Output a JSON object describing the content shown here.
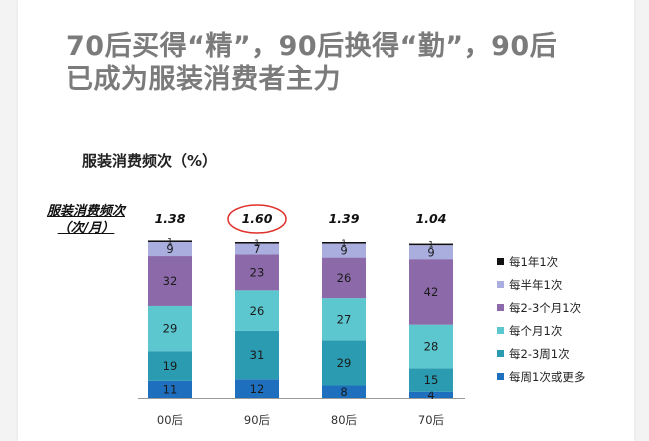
{
  "title_lines": [
    "70后买得“精”，90后换得“勤”，90后",
    "已成为服装消费者主力"
  ],
  "chart_data": {
    "type": "bar",
    "stacked": true,
    "title": "服装消费频次（%）",
    "freq_label": [
      "服装消费频次",
      "（次/月）"
    ],
    "categories": [
      "00后",
      "90后",
      "80后",
      "70后"
    ],
    "frequency": [
      "1.38",
      "1.60",
      "1.39",
      "1.04"
    ],
    "highlighted_category": "90后",
    "series": [
      {
        "name": "每周1次或更多",
        "color": "#1f6fbf",
        "values": [
          11,
          12,
          8,
          4
        ]
      },
      {
        "name": "每2-3周1次",
        "color": "#2a9bb0",
        "values": [
          19,
          31,
          29,
          15
        ]
      },
      {
        "name": "每个月1次",
        "color": "#5cc7cf",
        "values": [
          29,
          26,
          27,
          28
        ]
      },
      {
        "name": "每2-3个月1次",
        "color": "#8c6aa9",
        "values": [
          32,
          23,
          26,
          42
        ]
      },
      {
        "name": "每半年1次",
        "color": "#a9aede",
        "values": [
          9,
          7,
          9,
          9
        ]
      },
      {
        "name": "每1年1次",
        "color": "#111111",
        "values": [
          1,
          1,
          1,
          1
        ]
      }
    ],
    "legend_order": [
      "每1年1次",
      "每半年1次",
      "每2-3个月1次",
      "每个月1次",
      "每2-3周1次",
      "每周1次或更多"
    ],
    "ylim": [
      0,
      100
    ],
    "legend_position": "right",
    "highlight_color": "#e0302a"
  }
}
